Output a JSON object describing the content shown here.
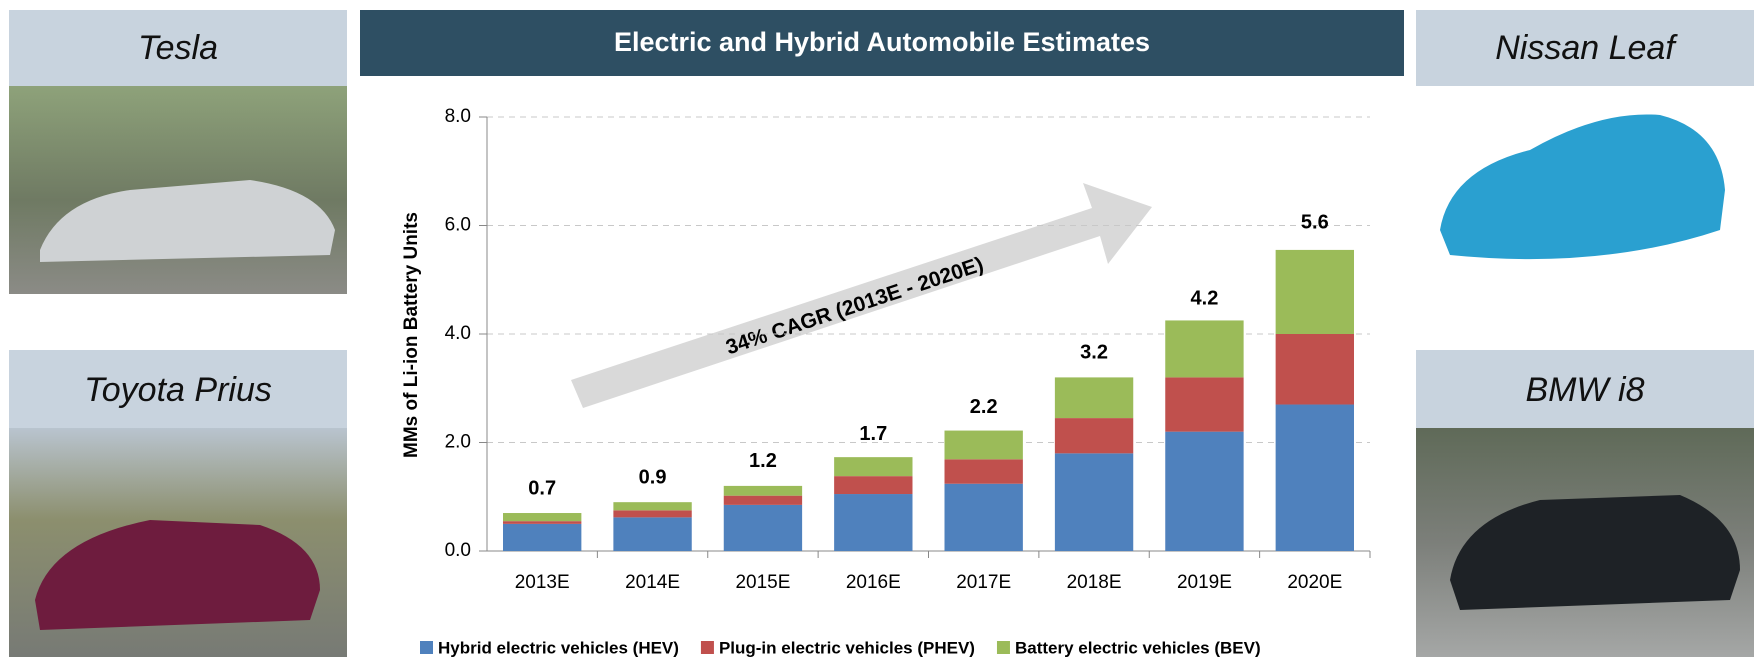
{
  "chart_data": {
    "type": "stacked_bar",
    "title": "Electric and Hybrid Automobile Estimates",
    "y_label": "MMs of Li-ion Battery Units",
    "categories": [
      "2013E",
      "2014E",
      "2015E",
      "2016E",
      "2017E",
      "2018E",
      "2019E",
      "2020E"
    ],
    "series": [
      {
        "name": "Hybrid electric vehicles (HEV)",
        "color": "#4f81bd",
        "values": [
          0.5,
          0.62,
          0.85,
          1.05,
          1.24,
          1.8,
          2.2,
          2.7
        ]
      },
      {
        "name": "Plug-in electric vehicles (PHEV)",
        "color": "#c0504d",
        "values": [
          0.05,
          0.13,
          0.17,
          0.33,
          0.45,
          0.65,
          1.0,
          1.3
        ]
      },
      {
        "name": "Battery electric vehicles (BEV)",
        "color": "#9bbb59",
        "values": [
          0.15,
          0.15,
          0.18,
          0.35,
          0.53,
          0.75,
          1.05,
          1.55
        ]
      }
    ],
    "totals": [
      0.7,
      0.9,
      1.2,
      1.7,
      2.2,
      3.2,
      4.2,
      5.6
    ],
    "ylim": [
      0,
      8
    ],
    "yticks": [
      {
        "value": 0,
        "label": "0.0"
      },
      {
        "value": 2,
        "label": "2.0"
      },
      {
        "value": 4,
        "label": "4.0"
      },
      {
        "value": 6,
        "label": "6.0"
      },
      {
        "value": 8,
        "label": "8.0"
      }
    ],
    "grid": true,
    "legend": "bottom",
    "annotation": "34% CAGR (2013E - 2020E)"
  },
  "panels": [
    "Tesla",
    "Toyota Prius",
    "Nissan Leaf",
    "BMW i8"
  ]
}
